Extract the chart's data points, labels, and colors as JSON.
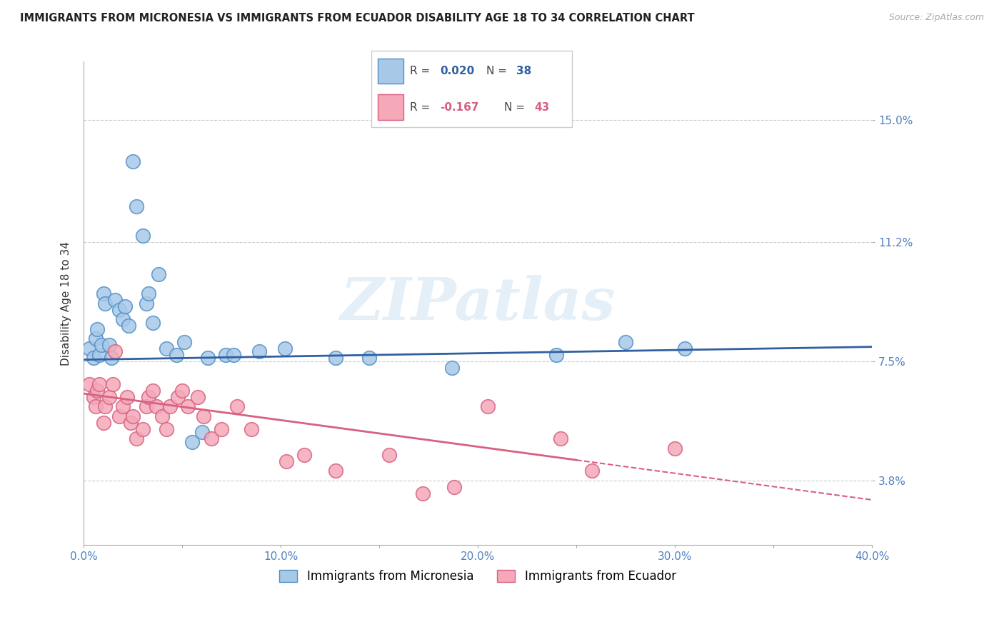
{
  "title": "IMMIGRANTS FROM MICRONESIA VS IMMIGRANTS FROM ECUADOR DISABILITY AGE 18 TO 34 CORRELATION CHART",
  "source": "Source: ZipAtlas.com",
  "xlabel_ticks": [
    "0.0%",
    "",
    "10.0%",
    "",
    "20.0%",
    "",
    "30.0%",
    "",
    "40.0%"
  ],
  "xlabel_vals": [
    0.0,
    5.0,
    10.0,
    15.0,
    20.0,
    25.0,
    30.0,
    35.0,
    40.0
  ],
  "ylabel": "Disability Age 18 to 34",
  "ylabel_ticks": [
    "3.8%",
    "7.5%",
    "11.2%",
    "15.0%"
  ],
  "ylabel_vals": [
    3.8,
    7.5,
    11.2,
    15.0
  ],
  "xlim": [
    0.0,
    40.0
  ],
  "ylim": [
    1.8,
    16.8
  ],
  "blue_R": 0.02,
  "blue_N": 38,
  "pink_R": -0.167,
  "pink_N": 43,
  "blue_color": "#a8c8e8",
  "pink_color": "#f4a8b8",
  "blue_edge": "#5090c8",
  "pink_edge": "#d86080",
  "blue_line_color": "#3060a0",
  "pink_line_color": "#d86080",
  "legend_label_blue": "Immigrants from Micronesia",
  "legend_label_pink": "Immigrants from Ecuador",
  "watermark": "ZIPatlas",
  "blue_points": [
    [
      0.3,
      7.9
    ],
    [
      0.5,
      7.6
    ],
    [
      0.6,
      8.2
    ],
    [
      0.7,
      8.5
    ],
    [
      0.8,
      7.7
    ],
    [
      0.9,
      8.0
    ],
    [
      1.0,
      9.6
    ],
    [
      1.1,
      9.3
    ],
    [
      1.3,
      8.0
    ],
    [
      1.4,
      7.6
    ],
    [
      1.6,
      9.4
    ],
    [
      1.8,
      9.1
    ],
    [
      2.0,
      8.8
    ],
    [
      2.1,
      9.2
    ],
    [
      2.3,
      8.6
    ],
    [
      2.5,
      13.7
    ],
    [
      2.7,
      12.3
    ],
    [
      3.0,
      11.4
    ],
    [
      3.2,
      9.3
    ],
    [
      3.3,
      9.6
    ],
    [
      3.5,
      8.7
    ],
    [
      3.8,
      10.2
    ],
    [
      4.2,
      7.9
    ],
    [
      4.7,
      7.7
    ],
    [
      5.1,
      8.1
    ],
    [
      5.5,
      5.0
    ],
    [
      6.0,
      5.3
    ],
    [
      6.3,
      7.6
    ],
    [
      7.2,
      7.7
    ],
    [
      7.6,
      7.7
    ],
    [
      8.9,
      7.8
    ],
    [
      10.2,
      7.9
    ],
    [
      12.8,
      7.6
    ],
    [
      14.5,
      7.6
    ],
    [
      18.7,
      7.3
    ],
    [
      24.0,
      7.7
    ],
    [
      27.5,
      8.1
    ],
    [
      30.5,
      7.9
    ]
  ],
  "pink_points": [
    [
      0.3,
      6.8
    ],
    [
      0.5,
      6.4
    ],
    [
      0.6,
      6.1
    ],
    [
      0.7,
      6.6
    ],
    [
      0.8,
      6.8
    ],
    [
      1.0,
      5.6
    ],
    [
      1.1,
      6.1
    ],
    [
      1.3,
      6.4
    ],
    [
      1.5,
      6.8
    ],
    [
      1.6,
      7.8
    ],
    [
      1.8,
      5.8
    ],
    [
      2.0,
      6.1
    ],
    [
      2.2,
      6.4
    ],
    [
      2.4,
      5.6
    ],
    [
      2.5,
      5.8
    ],
    [
      2.7,
      5.1
    ],
    [
      3.0,
      5.4
    ],
    [
      3.2,
      6.1
    ],
    [
      3.3,
      6.4
    ],
    [
      3.5,
      6.6
    ],
    [
      3.7,
      6.1
    ],
    [
      4.0,
      5.8
    ],
    [
      4.2,
      5.4
    ],
    [
      4.4,
      6.1
    ],
    [
      4.8,
      6.4
    ],
    [
      5.0,
      6.6
    ],
    [
      5.3,
      6.1
    ],
    [
      5.8,
      6.4
    ],
    [
      6.1,
      5.8
    ],
    [
      6.5,
      5.1
    ],
    [
      7.0,
      5.4
    ],
    [
      7.8,
      6.1
    ],
    [
      8.5,
      5.4
    ],
    [
      10.3,
      4.4
    ],
    [
      11.2,
      4.6
    ],
    [
      12.8,
      4.1
    ],
    [
      15.5,
      4.6
    ],
    [
      17.2,
      3.4
    ],
    [
      18.8,
      3.6
    ],
    [
      20.5,
      6.1
    ],
    [
      24.2,
      5.1
    ],
    [
      25.8,
      4.1
    ],
    [
      30.0,
      4.8
    ]
  ],
  "blue_line_x": [
    0.0,
    40.0
  ],
  "blue_line_y": [
    7.55,
    7.95
  ],
  "pink_line_x": [
    0.0,
    40.0
  ],
  "pink_line_y": [
    6.5,
    3.2
  ]
}
